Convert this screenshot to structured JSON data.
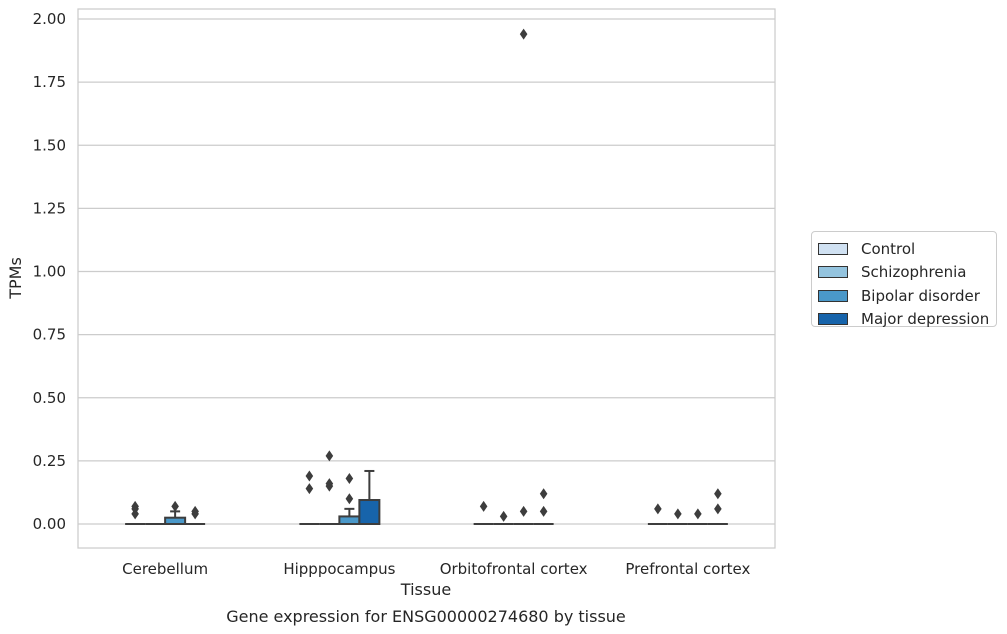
{
  "chart_data": {
    "type": "box",
    "xlabel": "Tissue",
    "ylabel": "TPMs",
    "caption": "Gene expression for ENSG00000274680 by tissue",
    "ylim": [
      -0.1,
      2.03
    ],
    "yticks": [
      "0.00",
      "0.25",
      "0.50",
      "0.75",
      "1.00",
      "1.25",
      "1.50",
      "1.75",
      "2.00"
    ],
    "grid": true,
    "legend_position": "right",
    "categories": [
      "Cerebellum",
      "Hipppocampus",
      "Orbitofrontal cortex",
      "Prefrontal cortex"
    ],
    "series": [
      {
        "name": "Control",
        "color": "#d0e1f2",
        "boxes": [
          {
            "q1": 0,
            "median": 0,
            "q3": 0,
            "whisker_low": 0,
            "whisker_high": 0,
            "outliers": [
              0.04,
              0.06,
              0.07
            ]
          },
          {
            "q1": 0,
            "median": 0,
            "q3": 0,
            "whisker_low": 0,
            "whisker_high": 0,
            "outliers": [
              0.14,
              0.19
            ]
          },
          {
            "q1": 0,
            "median": 0,
            "q3": 0,
            "whisker_low": 0,
            "whisker_high": 0,
            "outliers": [
              0.07
            ]
          },
          {
            "q1": 0,
            "median": 0,
            "q3": 0,
            "whisker_low": 0,
            "whisker_high": 0,
            "outliers": [
              0.06
            ]
          }
        ]
      },
      {
        "name": "Schizophrenia",
        "color": "#94c4df",
        "boxes": [
          {
            "q1": 0,
            "median": 0,
            "q3": 0,
            "whisker_low": 0,
            "whisker_high": 0,
            "outliers": []
          },
          {
            "q1": 0,
            "median": 0,
            "q3": 0,
            "whisker_low": 0,
            "whisker_high": 0,
            "outliers": [
              0.15,
              0.16,
              0.27
            ]
          },
          {
            "q1": 0,
            "median": 0,
            "q3": 0,
            "whisker_low": 0,
            "whisker_high": 0,
            "outliers": [
              0.03
            ]
          },
          {
            "q1": 0,
            "median": 0,
            "q3": 0,
            "whisker_low": 0,
            "whisker_high": 0,
            "outliers": [
              0.04
            ]
          }
        ]
      },
      {
        "name": "Bipolar disorder",
        "color": "#4a98c9",
        "boxes": [
          {
            "q1": 0,
            "median": 0,
            "q3": 0.025,
            "whisker_low": 0,
            "whisker_high": 0.05,
            "outliers": [
              0.07
            ]
          },
          {
            "q1": 0,
            "median": 0,
            "q3": 0.03,
            "whisker_low": 0,
            "whisker_high": 0.06,
            "outliers": [
              0.1,
              0.18
            ]
          },
          {
            "q1": 0,
            "median": 0,
            "q3": 0,
            "whisker_low": 0,
            "whisker_high": 0,
            "outliers": [
              0.05,
              1.94
            ]
          },
          {
            "q1": 0,
            "median": 0,
            "q3": 0,
            "whisker_low": 0,
            "whisker_high": 0,
            "outliers": [
              0.04
            ]
          }
        ]
      },
      {
        "name": "Major depression",
        "color": "#1764ab",
        "boxes": [
          {
            "q1": 0,
            "median": 0,
            "q3": 0,
            "whisker_low": 0,
            "whisker_high": 0,
            "outliers": [
              0.04,
              0.05
            ]
          },
          {
            "q1": 0,
            "median": 0,
            "q3": 0.095,
            "whisker_low": 0,
            "whisker_high": 0.21,
            "outliers": []
          },
          {
            "q1": 0,
            "median": 0,
            "q3": 0,
            "whisker_low": 0,
            "whisker_high": 0,
            "outliers": [
              0.05,
              0.12
            ]
          },
          {
            "q1": 0,
            "median": 0,
            "q3": 0,
            "whisker_low": 0,
            "whisker_high": 0,
            "outliers": [
              0.06,
              0.12
            ]
          }
        ]
      }
    ]
  }
}
